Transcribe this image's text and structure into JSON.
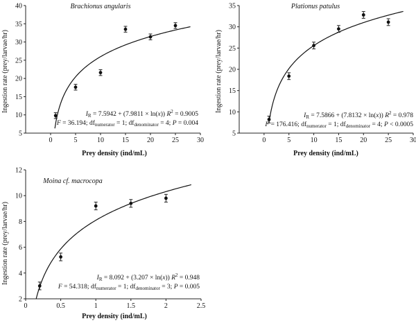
{
  "chart_data": [
    {
      "type": "scatter",
      "title": "Brachionus angularis",
      "xlabel": "Prey density (ind/mL)",
      "ylabel": "Ingestion rate (prey/larvae/hr)",
      "xlim": [
        -5,
        30
      ],
      "ylim": [
        5,
        40
      ],
      "xticks": [
        0,
        5,
        10,
        15,
        20,
        25,
        30
      ],
      "yticks": [
        5,
        10,
        15,
        20,
        25,
        30,
        35,
        40
      ],
      "x": [
        1,
        5,
        10,
        15,
        20,
        25
      ],
      "y": [
        9.8,
        17.6,
        21.6,
        33.5,
        31.4,
        34.5
      ],
      "err": [
        0.8,
        0.8,
        0.8,
        0.8,
        0.8,
        0.8
      ],
      "fit": {
        "type": "log",
        "a": 7.5942,
        "b": 7.9811,
        "x_from": 0.85,
        "x_to": 28
      },
      "equation": {
        "I": "I",
        "R": "R",
        "body": " = 7.5942 + (7.9811 × ln(",
        "x": "x",
        "close": ")) ",
        "r2": "R",
        "r2sup": "2",
        "r2val": " = 0.9005"
      },
      "stats": {
        "f": "F",
        "fval": " = 36.194; df",
        "num": "numerator",
        "mid": " = 1; df",
        "den": "denominator",
        "tail": " = 4; ",
        "p": "P",
        "pval": " = 0.004"
      }
    },
    {
      "type": "scatter",
      "title": "Plationus patulus",
      "xlabel": "Prey density (ind/mL)",
      "ylabel": "Ingestion rate (prey/larvae/hr)",
      "xlim": [
        -5,
        30
      ],
      "ylim": [
        5,
        35
      ],
      "xticks": [
        0,
        5,
        10,
        15,
        20,
        25,
        30
      ],
      "yticks": [
        5,
        10,
        15,
        20,
        25,
        30,
        35
      ],
      "x": [
        1,
        5,
        10,
        15,
        20,
        25
      ],
      "y": [
        8.2,
        18.4,
        25.6,
        29.5,
        32.8,
        31.1
      ],
      "err": [
        0.8,
        0.8,
        0.8,
        0.8,
        0.8,
        0.8
      ],
      "fit": {
        "type": "log",
        "a": 7.5866,
        "b": 7.8132,
        "x_from": 0.97,
        "x_to": 28
      },
      "equation": {
        "I": "I",
        "R": "R",
        "body": " = 7.5866 + (7.8132 × ln(",
        "x": "x",
        "close": ")) ",
        "r2": "R",
        "r2sup": "2",
        "r2val": " = 0.978"
      },
      "stats": {
        "f": "F",
        "fval": " = 176.416; df",
        "num": "numerator",
        "mid": " = 1; df",
        "den": "denominator",
        "tail": " = 4; ",
        "p": "P",
        "pval": " < 0.0005"
      }
    },
    {
      "type": "scatter",
      "title": "Moina cf. macrocopa",
      "xlabel": "Prey density (ind/mL)",
      "ylabel": "Ingestion rate (prey/larvae/hr)",
      "xlim": [
        0,
        2.5
      ],
      "ylim": [
        2,
        12
      ],
      "xticks": [
        0,
        0.5,
        1,
        1.5,
        2,
        2.5
      ],
      "yticks": [
        2,
        4,
        6,
        8,
        10,
        12
      ],
      "x": [
        0.2,
        0.5,
        1.0,
        1.5,
        2.0
      ],
      "y": [
        3.0,
        5.25,
        9.2,
        9.4,
        9.8
      ],
      "err": [
        0.3,
        0.3,
        0.3,
        0.3,
        0.3
      ],
      "fit": {
        "type": "log",
        "a": 8.092,
        "b": 3.207,
        "x_from": 0.15,
        "x_to": 2.36
      },
      "equation": {
        "I": "I",
        "R": "R",
        "body": " = 8.092 + (3.207 × ln(",
        "x": "x",
        "close": ")) ",
        "r2": "R",
        "r2sup": "2",
        "r2val": " = 0.948"
      },
      "stats": {
        "f": "F",
        "fval": " = 54.318; df",
        "num": "numerator",
        "mid": " = 1; df",
        "den": "denominator",
        "tail": " = 3; ",
        "p": "P",
        "pval": " = 0.005"
      }
    }
  ]
}
